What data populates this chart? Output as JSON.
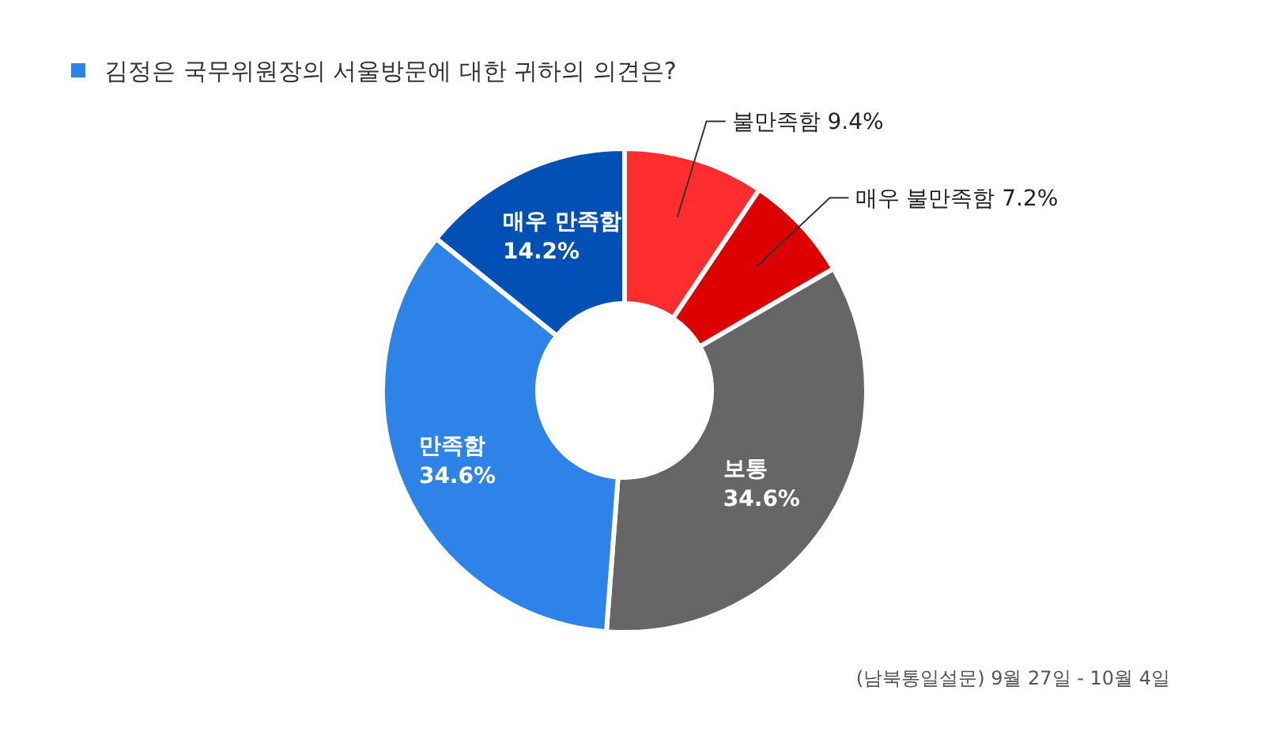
{
  "chart_data": {
    "type": "donut",
    "title": "김정은 국무위원장의 서울방문에 대한 귀하의 의견은?",
    "categories": [
      "불만족함",
      "매우 불만족함",
      "보통",
      "만족함",
      "매우 만족함"
    ],
    "values": [
      9.4,
      7.2,
      34.6,
      34.6,
      14.2
    ],
    "value_labels": [
      "9.4%",
      "7.2%",
      "34.6%",
      "34.6%",
      "14.2%"
    ],
    "colors": [
      "#ff2d2d",
      "#dd0000",
      "#666666",
      "#2e83e8",
      "#0050b5"
    ],
    "annotations": [
      "(남북통일설문) 9월 27일 - 10월 4일"
    ]
  }
}
